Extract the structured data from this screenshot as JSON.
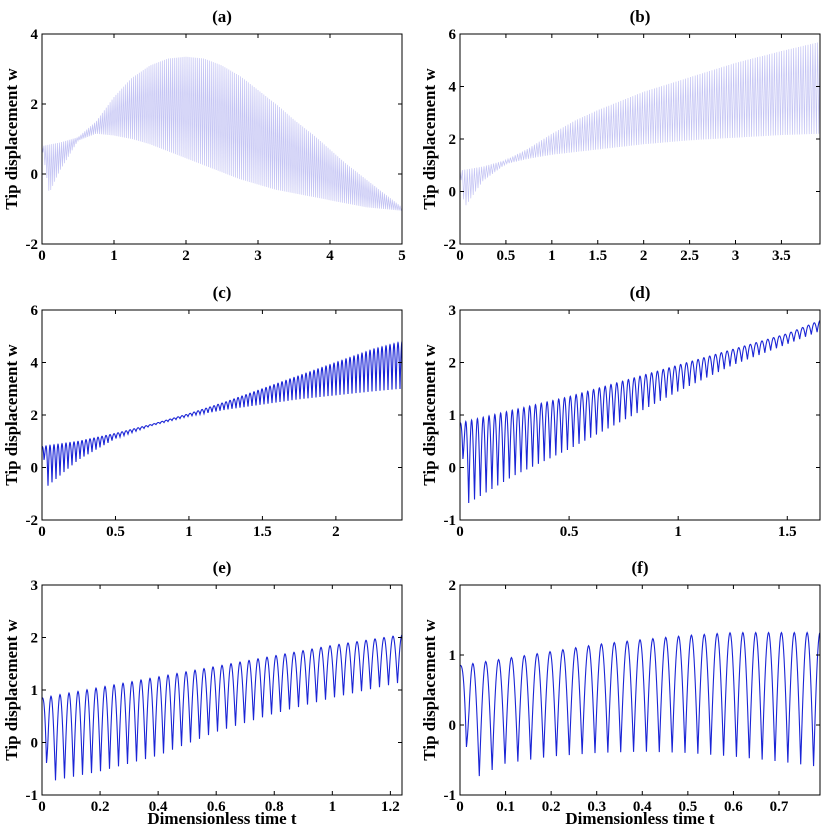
{
  "chart_data": [
    {
      "panel": "(a)",
      "type": "line",
      "title": "(a)",
      "xlabel": "",
      "ylabel": "Tip displacement w",
      "xlim": [
        0,
        5
      ],
      "ylim": [
        -2,
        4
      ],
      "xticks": [
        0,
        1,
        2,
        3,
        4,
        5
      ],
      "yticks": [
        -2,
        0,
        2,
        4
      ],
      "series": [
        {
          "line_color": "#c4c4f4",
          "oscillation": {
            "mode": "dense",
            "cycles": 185
          },
          "upper_envelope": [
            [
              0,
              0.8
            ],
            [
              0.25,
              0.9
            ],
            [
              0.5,
              1.05
            ],
            [
              0.75,
              1.5
            ],
            [
              1,
              2.2
            ],
            [
              1.25,
              2.75
            ],
            [
              1.5,
              3.1
            ],
            [
              1.75,
              3.3
            ],
            [
              2,
              3.35
            ],
            [
              2.25,
              3.3
            ],
            [
              2.5,
              3.1
            ],
            [
              2.75,
              2.8
            ],
            [
              3,
              2.4
            ],
            [
              3.25,
              2.0
            ],
            [
              3.5,
              1.55
            ],
            [
              3.75,
              1.15
            ],
            [
              4,
              0.7
            ],
            [
              4.25,
              0.25
            ],
            [
              4.5,
              -0.15
            ],
            [
              4.75,
              -0.55
            ],
            [
              5,
              -0.95
            ]
          ],
          "lower_envelope": [
            [
              0,
              0.8
            ],
            [
              0.1,
              -0.55
            ],
            [
              0.25,
              0.1
            ],
            [
              0.5,
              0.95
            ],
            [
              0.75,
              1.15
            ],
            [
              1,
              1.1
            ],
            [
              1.25,
              1.0
            ],
            [
              1.5,
              0.85
            ],
            [
              1.75,
              0.65
            ],
            [
              2,
              0.45
            ],
            [
              2.25,
              0.25
            ],
            [
              2.5,
              0.05
            ],
            [
              2.75,
              -0.15
            ],
            [
              3,
              -0.3
            ],
            [
              3.25,
              -0.45
            ],
            [
              3.5,
              -0.55
            ],
            [
              3.75,
              -0.65
            ],
            [
              4,
              -0.75
            ],
            [
              4.25,
              -0.85
            ],
            [
              4.5,
              -0.95
            ],
            [
              4.75,
              -1.0
            ],
            [
              5,
              -1.05
            ]
          ]
        }
      ]
    },
    {
      "panel": "(b)",
      "type": "line",
      "title": "(b)",
      "xlabel": "",
      "ylabel": "Tip displacement w",
      "xlim": [
        0,
        3.92
      ],
      "ylim": [
        -2,
        6
      ],
      "xticks": [
        0,
        0.5,
        1,
        1.5,
        2,
        2.5,
        3,
        3.5
      ],
      "yticks": [
        -2,
        0,
        2,
        4,
        6
      ],
      "series": [
        {
          "line_color": "#c4c4f4",
          "oscillation": {
            "mode": "dense",
            "cycles": 150
          },
          "upper_envelope": [
            [
              0,
              0.8
            ],
            [
              0.25,
              0.95
            ],
            [
              0.5,
              1.2
            ],
            [
              0.75,
              1.65
            ],
            [
              1,
              2.2
            ],
            [
              1.25,
              2.7
            ],
            [
              1.5,
              3.1
            ],
            [
              2,
              3.8
            ],
            [
              2.5,
              4.35
            ],
            [
              3,
              4.9
            ],
            [
              3.5,
              5.35
            ],
            [
              3.92,
              5.7
            ]
          ],
          "lower_envelope": [
            [
              0,
              0.8
            ],
            [
              0.05,
              -0.6
            ],
            [
              0.25,
              0.4
            ],
            [
              0.5,
              1.05
            ],
            [
              0.75,
              1.25
            ],
            [
              1,
              1.4
            ],
            [
              1.5,
              1.6
            ],
            [
              2,
              1.8
            ],
            [
              2.5,
              1.95
            ],
            [
              3,
              2.05
            ],
            [
              3.5,
              2.15
            ],
            [
              3.92,
              2.2
            ]
          ]
        }
      ]
    },
    {
      "panel": "(c)",
      "type": "line",
      "title": "(c)",
      "xlabel": "",
      "ylabel": "Tip displacement w",
      "xlim": [
        0,
        2.45
      ],
      "ylim": [
        -2,
        6
      ],
      "xticks": [
        0,
        0.5,
        1,
        1.5,
        2
      ],
      "yticks": [
        -2,
        0,
        2,
        4,
        6
      ],
      "series": [
        {
          "line_color": "#1a24d6",
          "oscillation": {
            "mode": "resolved",
            "cycles": 90
          },
          "upper_envelope": [
            [
              0,
              0.8
            ],
            [
              0.25,
              1.0
            ],
            [
              0.5,
              1.3
            ],
            [
              0.75,
              1.65
            ],
            [
              1,
              2.05
            ],
            [
              1.25,
              2.5
            ],
            [
              1.5,
              3.0
            ],
            [
              1.75,
              3.5
            ],
            [
              2,
              4.0
            ],
            [
              2.25,
              4.5
            ],
            [
              2.45,
              4.8
            ]
          ],
          "lower_envelope": [
            [
              0,
              0.8
            ],
            [
              0.04,
              -0.7
            ],
            [
              0.25,
              0.3
            ],
            [
              0.5,
              1.1
            ],
            [
              0.75,
              1.6
            ],
            [
              1,
              1.95
            ],
            [
              1.25,
              2.2
            ],
            [
              1.5,
              2.4
            ],
            [
              1.75,
              2.6
            ],
            [
              2,
              2.75
            ],
            [
              2.25,
              2.9
            ],
            [
              2.45,
              3.0
            ]
          ]
        }
      ]
    },
    {
      "panel": "(d)",
      "type": "line",
      "title": "(d)",
      "xlabel": "",
      "ylabel": "Tip displacement w",
      "xlim": [
        0,
        1.65
      ],
      "ylim": [
        -1,
        3
      ],
      "xticks": [
        0,
        0.5,
        1,
        1.5
      ],
      "yticks": [
        -1,
        0,
        1,
        2,
        3
      ],
      "series": [
        {
          "line_color": "#1a24d6",
          "oscillation": {
            "mode": "resolved",
            "cycles": 62
          },
          "upper_envelope": [
            [
              0,
              0.85
            ],
            [
              0.25,
              1.1
            ],
            [
              0.5,
              1.35
            ],
            [
              0.75,
              1.65
            ],
            [
              1,
              1.95
            ],
            [
              1.25,
              2.25
            ],
            [
              1.5,
              2.55
            ],
            [
              1.65,
              2.8
            ]
          ],
          "lower_envelope": [
            [
              0,
              0.85
            ],
            [
              0.03,
              -0.7
            ],
            [
              0.25,
              -0.15
            ],
            [
              0.5,
              0.35
            ],
            [
              0.75,
              0.9
            ],
            [
              1,
              1.45
            ],
            [
              1.25,
              1.95
            ],
            [
              1.5,
              2.35
            ],
            [
              1.65,
              2.6
            ]
          ]
        }
      ]
    },
    {
      "panel": "(e)",
      "type": "line",
      "title": "(e)",
      "xlabel": "Dimensionless time t",
      "ylabel": "Tip displacement w",
      "xlim": [
        0,
        1.24
      ],
      "ylim": [
        -1,
        3
      ],
      "xticks": [
        0,
        0.2,
        0.4,
        0.6,
        0.8,
        1,
        1.2
      ],
      "yticks": [
        -1,
        0,
        1,
        2,
        3
      ],
      "series": [
        {
          "line_color": "#1a24d6",
          "oscillation": {
            "mode": "resolved",
            "cycles": 40
          },
          "upper_envelope": [
            [
              0,
              0.85
            ],
            [
              0.2,
              1.05
            ],
            [
              0.4,
              1.25
            ],
            [
              0.6,
              1.45
            ],
            [
              0.8,
              1.65
            ],
            [
              1,
              1.85
            ],
            [
              1.24,
              2.05
            ]
          ],
          "lower_envelope": [
            [
              0,
              0.85
            ],
            [
              0.02,
              -0.75
            ],
            [
              0.2,
              -0.55
            ],
            [
              0.4,
              -0.25
            ],
            [
              0.6,
              0.2
            ],
            [
              0.8,
              0.55
            ],
            [
              1,
              0.85
            ],
            [
              1.24,
              1.15
            ]
          ]
        }
      ]
    },
    {
      "panel": "(f)",
      "type": "line",
      "title": "(f)",
      "xlabel": "Dimensionless time t",
      "ylabel": "Tip displacement w",
      "xlim": [
        0,
        0.79
      ],
      "ylim": [
        -1,
        2
      ],
      "xticks": [
        0,
        0.1,
        0.2,
        0.3,
        0.4,
        0.5,
        0.6,
        0.7
      ],
      "yticks": [
        -1,
        0,
        1,
        2
      ],
      "series": [
        {
          "line_color": "#1a24d6",
          "oscillation": {
            "mode": "resolved",
            "cycles": 28
          },
          "upper_envelope": [
            [
              0,
              0.85
            ],
            [
              0.1,
              0.95
            ],
            [
              0.2,
              1.05
            ],
            [
              0.3,
              1.15
            ],
            [
              0.4,
              1.22
            ],
            [
              0.5,
              1.28
            ],
            [
              0.6,
              1.32
            ],
            [
              0.79,
              1.32
            ]
          ],
          "lower_envelope": [
            [
              0,
              0.85
            ],
            [
              0.02,
              -0.8
            ],
            [
              0.1,
              -0.55
            ],
            [
              0.2,
              -0.45
            ],
            [
              0.3,
              -0.4
            ],
            [
              0.4,
              -0.38
            ],
            [
              0.5,
              -0.4
            ],
            [
              0.6,
              -0.45
            ],
            [
              0.7,
              -0.52
            ],
            [
              0.79,
              -0.6
            ]
          ]
        }
      ]
    }
  ]
}
